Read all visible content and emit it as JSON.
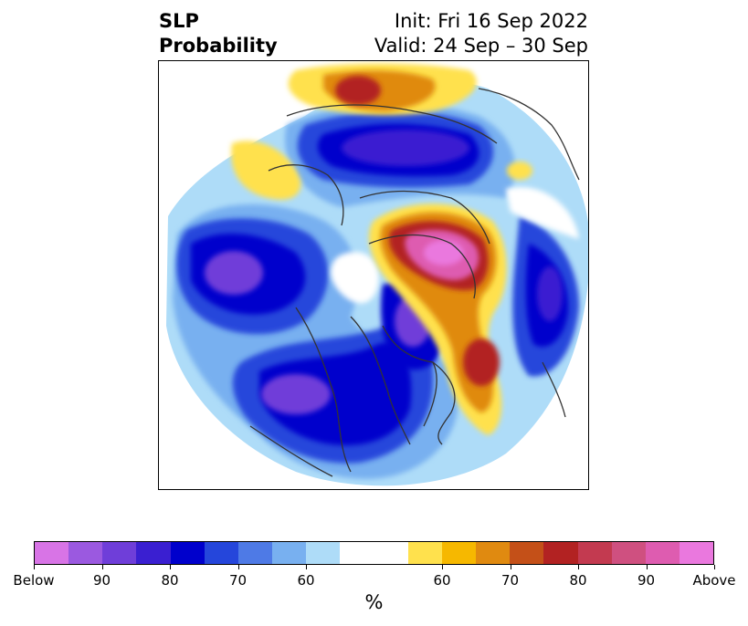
{
  "title": {
    "left_line1": "SLP",
    "left_line2": "Probability",
    "right_line1": "Init: Fri 16 Sep 2022",
    "right_line2": "Valid: 24 Sep – 30 Sep"
  },
  "colorbar": {
    "colors": [
      "#d874e6",
      "#9b59e0",
      "#6f3ed9",
      "#3a1fd1",
      "#0000cc",
      "#2546db",
      "#4e7ae6",
      "#78b0f0",
      "#aedcf8",
      "#ffffff",
      "#ffffff",
      "#ffe14d",
      "#f6b800",
      "#e08a10",
      "#c45018",
      "#b22222",
      "#c33a50",
      "#cf5080",
      "#de5cb0",
      "#ea78de"
    ],
    "tick_labels": [
      "Below",
      "90",
      "80",
      "70",
      "60",
      "60",
      "70",
      "80",
      "90",
      "Above"
    ],
    "unit": "%"
  },
  "map": {
    "projection": "north-polar-stereographic",
    "field": "SLP probability anomaly",
    "colors": {
      "below_strong": "#6f3ed9",
      "below": "#0000cc",
      "below_weak": "#4e7ae6",
      "below_light": "#aedcf8",
      "above_light": "#ffe14d",
      "above": "#e08a10",
      "above_strong": "#b22222",
      "above_max": "#ea78de",
      "coastline": "#333333"
    }
  }
}
